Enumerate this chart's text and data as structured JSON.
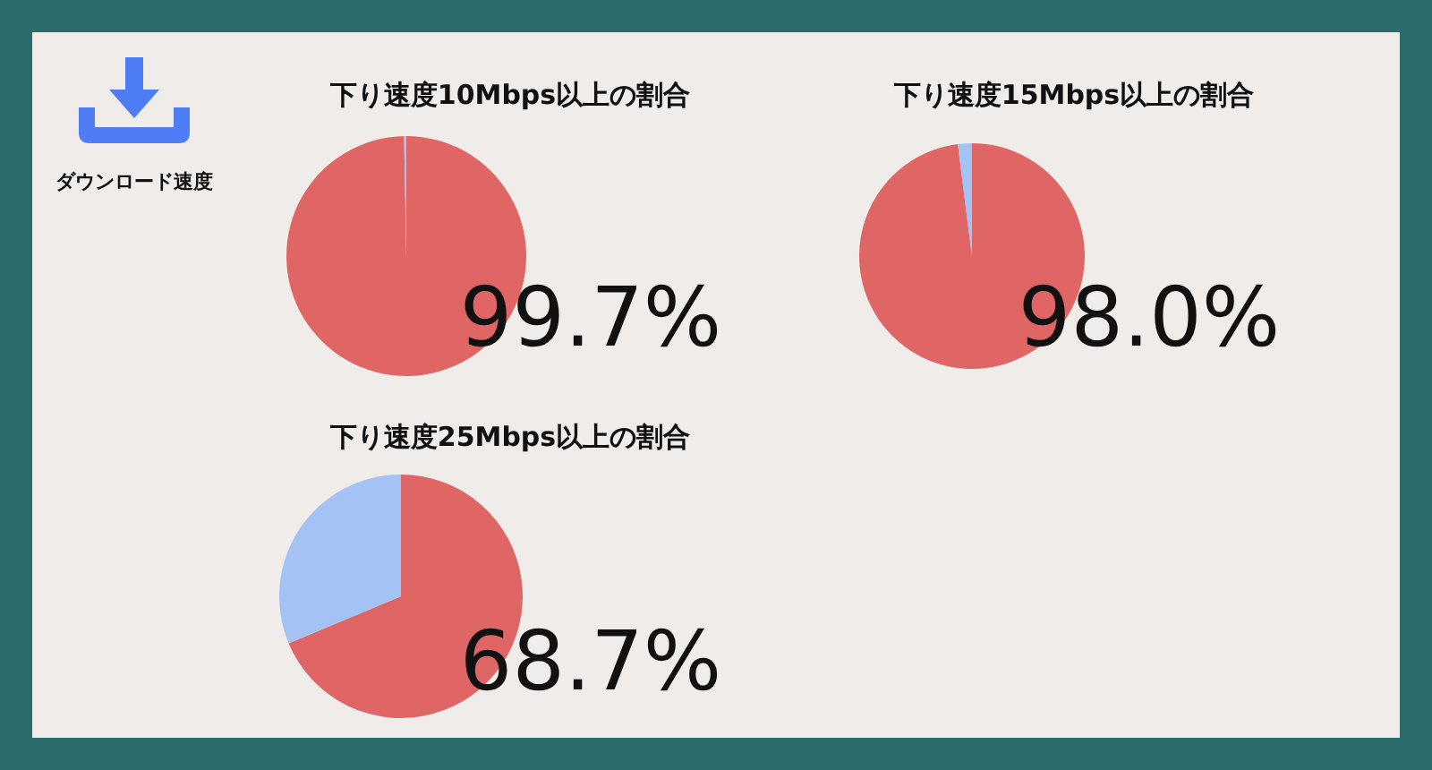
{
  "chart_data": [
    {
      "type": "other",
      "title": "ダウンロード速度"
    },
    {
      "type": "pie",
      "title": "下り速度10Mbps以上の割合",
      "categories": [
        null,
        null
      ],
      "values": [
        99.7,
        0.3
      ],
      "colors": [
        "#e06666",
        "#a4c2f4"
      ],
      "value_labels": [
        "99.7%",
        null
      ]
    },
    {
      "type": "pie",
      "title": "下り速度15Mbps以上の割合",
      "categories": [
        null,
        null
      ],
      "values": [
        98.0,
        2.0
      ],
      "colors": [
        "#e06666",
        "#a4c2f4"
      ],
      "value_labels": [
        "98.0%",
        null
      ]
    },
    {
      "type": "pie",
      "title": "下り速度25Mbps以上の割合",
      "categories": [
        null,
        null
      ],
      "values": [
        68.7,
        31.3
      ],
      "colors": [
        "#e06666",
        "#a4c2f4"
      ],
      "value_labels": [
        "68.7%",
        null
      ]
    }
  ]
}
